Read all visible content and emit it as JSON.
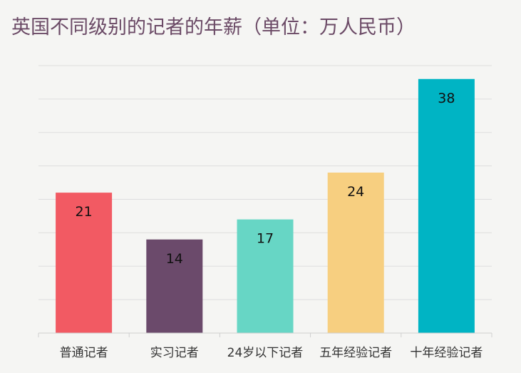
{
  "chart_data": {
    "type": "bar",
    "title": "英国不同级别的记者的年薪（单位：万人民币）",
    "categories": [
      "普通记者",
      "实习记者",
      "24岁以下记者",
      "五年经验记者",
      "十年经验记者"
    ],
    "values": [
      21,
      14,
      17,
      24,
      38
    ],
    "colors": [
      "#f25a63",
      "#6b4a6b",
      "#67d6c5",
      "#f7cf80",
      "#00b4c4"
    ],
    "ylim": [
      0,
      40
    ],
    "grid": true,
    "xlabel": "",
    "ylabel": ""
  }
}
